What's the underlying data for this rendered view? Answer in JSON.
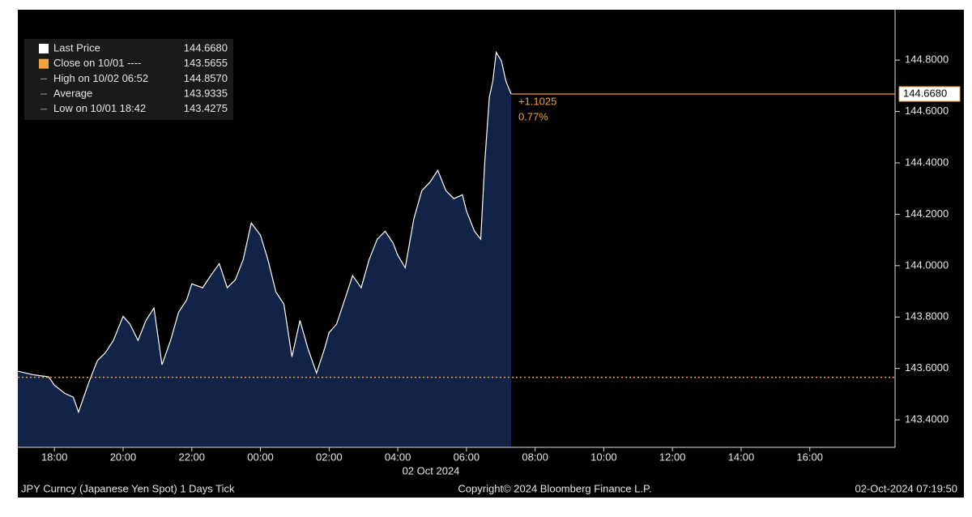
{
  "chart_data": {
    "type": "area",
    "x": [
      "2024-10-01T16:56",
      "2024-10-01T17:22",
      "2024-10-01T17:50",
      "2024-10-01T18:00",
      "2024-10-01T18:18",
      "2024-10-01T18:33",
      "2024-10-01T18:42",
      "2024-10-01T19:01",
      "2024-10-01T19:15",
      "2024-10-01T19:29",
      "2024-10-01T19:43",
      "2024-10-01T20:00",
      "2024-10-01T20:12",
      "2024-10-01T20:26",
      "2024-10-01T20:40",
      "2024-10-01T20:54",
      "2024-10-01T21:08",
      "2024-10-01T21:23",
      "2024-10-01T21:37",
      "2024-10-01T21:51",
      "2024-10-01T22:00",
      "2024-10-01T22:19",
      "2024-10-01T22:33",
      "2024-10-01T22:48",
      "2024-10-01T23:02",
      "2024-10-01T23:16",
      "2024-10-01T23:30",
      "2024-10-01T23:44",
      "2024-10-02T00:00",
      "2024-10-02T00:13",
      "2024-10-02T00:27",
      "2024-10-02T00:41",
      "2024-10-02T00:55",
      "2024-10-02T01:09",
      "2024-10-02T01:23",
      "2024-10-02T01:38",
      "2024-10-02T01:52",
      "2024-10-02T02:00",
      "2024-10-02T02:13",
      "2024-10-02T02:27",
      "2024-10-02T02:41",
      "2024-10-02T02:56",
      "2024-10-02T03:10",
      "2024-10-02T03:24",
      "2024-10-02T03:38",
      "2024-10-02T03:52",
      "2024-10-02T04:00",
      "2024-10-02T04:13",
      "2024-10-02T04:28",
      "2024-10-02T04:42",
      "2024-10-02T04:56",
      "2024-10-02T05:10",
      "2024-10-02T05:24",
      "2024-10-02T05:38",
      "2024-10-02T05:53",
      "2024-10-02T06:00",
      "2024-10-02T06:14",
      "2024-10-02T06:25",
      "2024-10-02T06:32",
      "2024-10-02T06:40",
      "2024-10-02T06:46",
      "2024-10-02T06:52",
      "2024-10-02T07:01",
      "2024-10-02T07:09",
      "2024-10-02T07:18"
    ],
    "series": [
      {
        "name": "Last Price",
        "color": "#ffffff",
        "fill": "#112346",
        "values": [
          143.589,
          143.576,
          143.567,
          143.535,
          143.503,
          143.488,
          143.43,
          143.551,
          143.63,
          143.661,
          143.709,
          143.803,
          143.772,
          143.709,
          143.787,
          143.835,
          143.614,
          143.709,
          143.819,
          143.866,
          143.929,
          143.914,
          143.961,
          144.008,
          143.914,
          143.945,
          144.024,
          144.166,
          144.119,
          144.024,
          143.898,
          143.85,
          143.645,
          143.787,
          143.677,
          143.582,
          143.677,
          143.74,
          143.772,
          143.866,
          143.961,
          143.914,
          144.024,
          144.103,
          144.134,
          144.087,
          144.04,
          143.992,
          144.182,
          144.292,
          144.324,
          144.371,
          144.292,
          144.261,
          144.276,
          144.213,
          144.134,
          144.103,
          144.403,
          144.655,
          144.718,
          144.83,
          144.797,
          144.718,
          144.668
        ]
      }
    ],
    "legend": [
      {
        "name": "Last Price",
        "value": 144.668,
        "label": "144.6680"
      },
      {
        "name": "Close on 10/01 ----",
        "value": 143.5655,
        "label": "143.5655"
      },
      {
        "name": "High on 10/02 06:52",
        "label": "144.8570"
      },
      {
        "name": "Average",
        "label": "143.9335"
      },
      {
        "name": "Low on 10/01 18:42",
        "label": "143.4275"
      }
    ],
    "change": "+1.1025",
    "change_pct": "0.77%",
    "ref_color": "#f0a33a",
    "xlim": [
      "2024-10-01T16:56",
      "2024-10-02T18:29"
    ],
    "xticks": [
      {
        "value": "2024-10-01T18:00",
        "label": "18:00"
      },
      {
        "value": "2024-10-01T20:00",
        "label": "20:00"
      },
      {
        "value": "2024-10-01T22:00",
        "label": "22:00"
      },
      {
        "value": "2024-10-02T00:00",
        "label": "00:00"
      },
      {
        "value": "2024-10-02T02:00",
        "label": "02:00"
      },
      {
        "value": "2024-10-02T04:00",
        "label": "04:00"
      },
      {
        "value": "2024-10-02T06:00",
        "label": "06:00"
      },
      {
        "value": "2024-10-02T08:00",
        "label": "08:00"
      },
      {
        "value": "2024-10-02T10:00",
        "label": "10:00"
      },
      {
        "value": "2024-10-02T12:00",
        "label": "12:00"
      },
      {
        "value": "2024-10-02T14:00",
        "label": "14:00"
      },
      {
        "value": "2024-10-02T16:00",
        "label": "16:00"
      }
    ],
    "date_label": "02 Oct 2024",
    "ylim": [
      143.293,
      144.996
    ],
    "yticks": [
      {
        "value": 143.4,
        "label": "143.4000"
      },
      {
        "value": 143.6,
        "label": "143.6000"
      },
      {
        "value": 143.8,
        "label": "143.8000"
      },
      {
        "value": 144.0,
        "label": "144.0000"
      },
      {
        "value": 144.2,
        "label": "144.2000"
      },
      {
        "value": 144.4,
        "label": "144.4000"
      },
      {
        "value": 144.6,
        "label": "144.6000"
      },
      {
        "value": 144.8,
        "label": "144.8000"
      }
    ],
    "footer": {
      "left": "JPY Curncy (Japanese Yen Spot) 1 Days  Tick",
      "center": "Copyright© 2024 Bloomberg Finance L.P.",
      "right": "02-Oct-2024 07:19:50"
    }
  }
}
